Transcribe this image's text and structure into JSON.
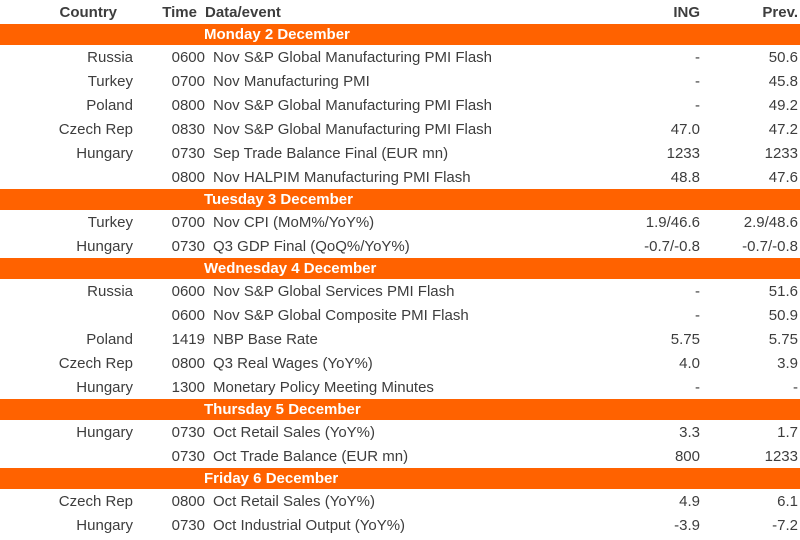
{
  "colors": {
    "band_background": "#FF6200",
    "band_text": "#FFFFFF",
    "body_text": "#3D3D3D"
  },
  "table": {
    "columns": [
      "Country",
      "Time",
      "Data/event",
      "ING",
      "Prev."
    ],
    "sections": [
      {
        "day": "Monday 2 December",
        "rows": [
          {
            "country": "Russia",
            "time": "0600",
            "event": "Nov S&P Global Manufacturing PMI Flash",
            "ing": "-",
            "prev": "50.6"
          },
          {
            "country": "Turkey",
            "time": "0700",
            "event": "Nov Manufacturing PMI",
            "ing": "-",
            "prev": "45.8"
          },
          {
            "country": "Poland",
            "time": "0800",
            "event": "Nov S&P Global Manufacturing PMI Flash",
            "ing": "-",
            "prev": "49.2"
          },
          {
            "country": "Czech Rep",
            "time": "0830",
            "event": "Nov S&P Global Manufacturing PMI Flash",
            "ing": "47.0",
            "prev": "47.2"
          },
          {
            "country": "Hungary",
            "time": "0730",
            "event": "Sep Trade Balance Final (EUR mn)",
            "ing": "1233",
            "prev": "1233"
          },
          {
            "country": "",
            "time": "0800",
            "event": "Nov HALPIM Manufacturing PMI Flash",
            "ing": "48.8",
            "prev": "47.6"
          }
        ]
      },
      {
        "day": "Tuesday 3 December",
        "rows": [
          {
            "country": "Turkey",
            "time": "0700",
            "event": "Nov CPI (MoM%/YoY%)",
            "ing": "1.9/46.6",
            "prev": "2.9/48.6"
          },
          {
            "country": "Hungary",
            "time": "0730",
            "event": "Q3 GDP Final (QoQ%/YoY%)",
            "ing": "-0.7/-0.8",
            "prev": "-0.7/-0.8"
          }
        ]
      },
      {
        "day": "Wednesday 4 December",
        "rows": [
          {
            "country": "Russia",
            "time": "0600",
            "event": "Nov S&P Global Services PMI Flash",
            "ing": "-",
            "prev": "51.6"
          },
          {
            "country": "",
            "time": "0600",
            "event": "Nov S&P Global Composite PMI Flash",
            "ing": "-",
            "prev": "50.9"
          },
          {
            "country": "Poland",
            "time": "1419",
            "event": "NBP Base Rate",
            "ing": "5.75",
            "prev": "5.75"
          },
          {
            "country": "Czech Rep",
            "time": "0800",
            "event": "Q3 Real Wages (YoY%)",
            "ing": "4.0",
            "prev": "3.9"
          },
          {
            "country": "Hungary",
            "time": "1300",
            "event": "Monetary Policy Meeting Minutes",
            "ing": "-",
            "prev": "-"
          }
        ]
      },
      {
        "day": "Thursday 5 December",
        "rows": [
          {
            "country": "Hungary",
            "time": "0730",
            "event": "Oct Retail Sales (YoY%)",
            "ing": "3.3",
            "prev": "1.7"
          },
          {
            "country": "",
            "time": "0730",
            "event": "Oct Trade Balance (EUR mn)",
            "ing": "800",
            "prev": "1233"
          }
        ]
      },
      {
        "day": "Friday 6 December",
        "rows": [
          {
            "country": "Czech Rep",
            "time": "0800",
            "event": "Oct Retail Sales (YoY%)",
            "ing": "4.9",
            "prev": "6.1"
          },
          {
            "country": "Hungary",
            "time": "0730",
            "event": "Oct Industrial Output (YoY%)",
            "ing": "-3.9",
            "prev": "-7.2"
          }
        ]
      }
    ]
  }
}
